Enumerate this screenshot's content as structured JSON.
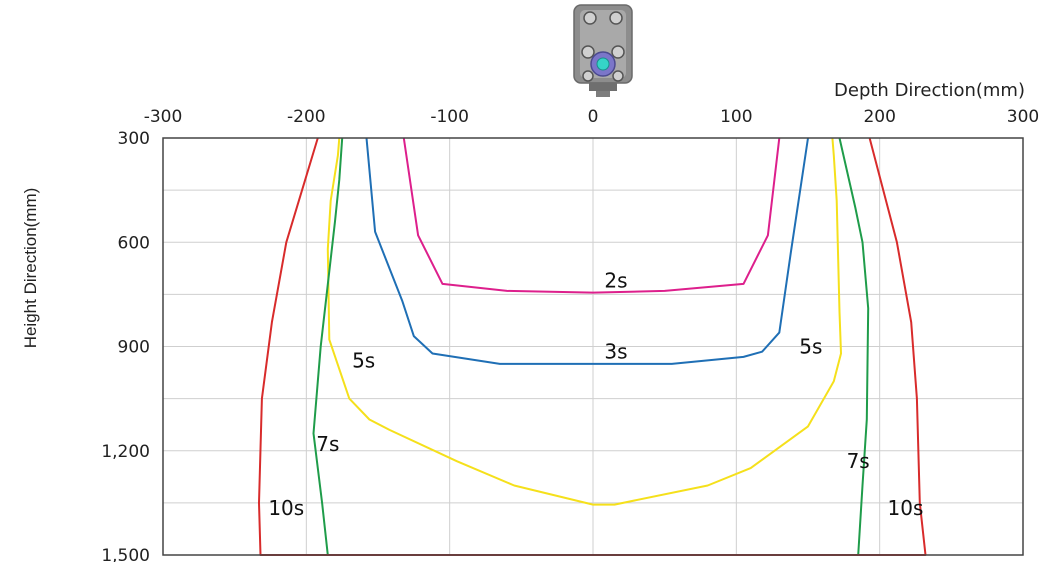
{
  "chart_data": {
    "type": "line",
    "xlabel": "Depth Direction(mm)",
    "ylabel": "Height Direction(mm)",
    "xlim": [
      -300,
      300
    ],
    "ylim": [
      300,
      1500
    ],
    "y_inverted": true,
    "x_ticks": [
      {
        "value": -300,
        "label": "-300"
      },
      {
        "value": -200,
        "label": "-200"
      },
      {
        "value": -100,
        "label": "-100"
      },
      {
        "value": 0,
        "label": "0"
      },
      {
        "value": 100,
        "label": "100"
      },
      {
        "value": 200,
        "label": "200"
      },
      {
        "value": 300,
        "label": "300"
      }
    ],
    "y_ticks": [
      {
        "value": 300,
        "label": "300"
      },
      {
        "value": 600,
        "label": "600"
      },
      {
        "value": 900,
        "label": "900"
      },
      {
        "value": 1200,
        "label": "1,200"
      },
      {
        "value": 1500,
        "label": "1,500"
      }
    ],
    "y_gridlines": [
      300,
      450,
      600,
      750,
      900,
      1050,
      1200,
      1350,
      1500
    ],
    "x_gridlines": [
      -300,
      -200,
      -100,
      0,
      100,
      200,
      300
    ],
    "grid": true,
    "series": [
      {
        "name": "2s",
        "color": "#dd1f8c",
        "points": [
          [
            -132,
            300
          ],
          [
            -122,
            580
          ],
          [
            -105,
            720
          ],
          [
            -60,
            740
          ],
          [
            0,
            745
          ],
          [
            50,
            740
          ],
          [
            105,
            720
          ],
          [
            122,
            580
          ],
          [
            130,
            300
          ]
        ],
        "labels": [
          {
            "text": "2s",
            "x": 16,
            "y": 710
          }
        ]
      },
      {
        "name": "3s",
        "color": "#1f6fb5",
        "points": [
          [
            -158,
            300
          ],
          [
            -152,
            570
          ],
          [
            -133,
            770
          ],
          [
            -125,
            870
          ],
          [
            -112,
            920
          ],
          [
            -65,
            950
          ],
          [
            0,
            950
          ],
          [
            55,
            950
          ],
          [
            105,
            930
          ],
          [
            118,
            915
          ],
          [
            130,
            860
          ],
          [
            138,
            630
          ],
          [
            150,
            300
          ]
        ],
        "labels": [
          {
            "text": "3s",
            "x": 16,
            "y": 915
          }
        ]
      },
      {
        "name": "5s",
        "color": "#f5e01b",
        "points": [
          [
            -177,
            300
          ],
          [
            -178,
            350
          ],
          [
            -183,
            480
          ],
          [
            -185,
            620
          ],
          [
            -184,
            880
          ],
          [
            -170,
            1050
          ],
          [
            -156,
            1110
          ],
          [
            -142,
            1140
          ],
          [
            -95,
            1230
          ],
          [
            -55,
            1300
          ],
          [
            0,
            1355
          ],
          [
            15,
            1355
          ],
          [
            80,
            1300
          ],
          [
            110,
            1250
          ],
          [
            150,
            1130
          ],
          [
            168,
            1000
          ],
          [
            173,
            920
          ],
          [
            172,
            800
          ],
          [
            170,
            480
          ],
          [
            168,
            350
          ],
          [
            167,
            300
          ]
        ],
        "labels": [
          {
            "text": "5s",
            "x": -160,
            "y": 940
          },
          {
            "text": "5s",
            "x": 152,
            "y": 900
          }
        ]
      },
      {
        "name": "7s",
        "color": "#1f9c4a",
        "points": [
          [
            -175,
            300
          ],
          [
            -177,
            420
          ],
          [
            -180,
            540
          ],
          [
            -190,
            900
          ],
          [
            -195,
            1150
          ],
          [
            -189,
            1350
          ],
          [
            -185,
            1500
          ],
          [
            185,
            1500
          ],
          [
            188,
            1300
          ],
          [
            191,
            1110
          ],
          [
            192,
            790
          ],
          [
            188,
            600
          ],
          [
            183,
            500
          ],
          [
            172,
            300
          ]
        ],
        "labels": [
          {
            "text": "7s",
            "x": -185,
            "y": 1180
          },
          {
            "text": "7s",
            "x": 185,
            "y": 1230
          }
        ]
      },
      {
        "name": "10s",
        "color": "#d82b2b",
        "points": [
          [
            -192,
            300
          ],
          [
            -214,
            600
          ],
          [
            -224,
            830
          ],
          [
            -231,
            1050
          ],
          [
            -233,
            1350
          ],
          [
            -232,
            1500
          ],
          [
            232,
            1500
          ],
          [
            228,
            1350
          ],
          [
            226,
            1050
          ],
          [
            222,
            830
          ],
          [
            212,
            600
          ],
          [
            193,
            300
          ]
        ],
        "labels": [
          {
            "text": "10s",
            "x": -214,
            "y": 1365
          },
          {
            "text": "10s",
            "x": 218,
            "y": 1365
          }
        ]
      }
    ]
  }
}
